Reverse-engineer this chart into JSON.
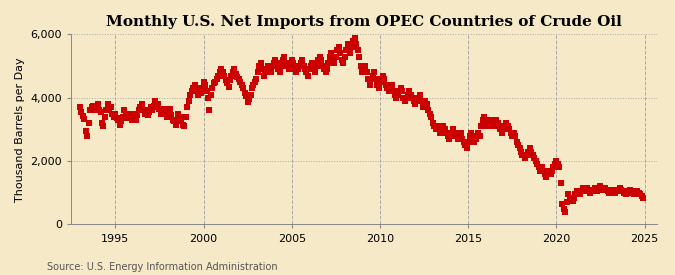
{
  "title": "Monthly U.S. Net Imports from OPEC Countries of Crude Oil",
  "ylabel": "Thousand Barrels per Day",
  "source": "Source: U.S. Energy Information Administration",
  "bg_color": "#f5e9c8",
  "plot_bg_color": "#f5e9c8",
  "marker_color": "#cc0000",
  "marker": "s",
  "marker_size": 18,
  "ylim": [
    0,
    6000
  ],
  "yticks": [
    0,
    2000,
    4000,
    6000
  ],
  "ytick_labels": [
    "0",
    "2,000",
    "4,000",
    "6,000"
  ],
  "xlim_start": 1992.5,
  "xlim_end": 2025.7,
  "xticks": [
    1995,
    2000,
    2005,
    2010,
    2015,
    2020,
    2025
  ],
  "grid_color": "#aaaaaa",
  "grid_style": "-.",
  "title_fontsize": 11,
  "ylabel_fontsize": 8,
  "tick_fontsize": 8,
  "source_fontsize": 7,
  "data": [
    [
      1993.0,
      3700
    ],
    [
      1993.08,
      3550
    ],
    [
      1993.17,
      3420
    ],
    [
      1993.25,
      3320
    ],
    [
      1993.33,
      2950
    ],
    [
      1993.42,
      2800
    ],
    [
      1993.5,
      3200
    ],
    [
      1993.58,
      3600
    ],
    [
      1993.67,
      3700
    ],
    [
      1993.75,
      3750
    ],
    [
      1993.83,
      3600
    ],
    [
      1993.92,
      3700
    ],
    [
      1994.0,
      3800
    ],
    [
      1994.08,
      3600
    ],
    [
      1994.17,
      3550
    ],
    [
      1994.25,
      3200
    ],
    [
      1994.33,
      3100
    ],
    [
      1994.42,
      3400
    ],
    [
      1994.5,
      3600
    ],
    [
      1994.58,
      3800
    ],
    [
      1994.67,
      3650
    ],
    [
      1994.75,
      3700
    ],
    [
      1994.83,
      3500
    ],
    [
      1994.92,
      3400
    ],
    [
      1995.0,
      3500
    ],
    [
      1995.08,
      3350
    ],
    [
      1995.17,
      3300
    ],
    [
      1995.25,
      3150
    ],
    [
      1995.33,
      3250
    ],
    [
      1995.42,
      3400
    ],
    [
      1995.5,
      3600
    ],
    [
      1995.58,
      3500
    ],
    [
      1995.67,
      3350
    ],
    [
      1995.75,
      3500
    ],
    [
      1995.83,
      3400
    ],
    [
      1995.92,
      3300
    ],
    [
      1996.0,
      3350
    ],
    [
      1996.08,
      3500
    ],
    [
      1996.17,
      3300
    ],
    [
      1996.25,
      3450
    ],
    [
      1996.33,
      3600
    ],
    [
      1996.42,
      3700
    ],
    [
      1996.5,
      3800
    ],
    [
      1996.58,
      3600
    ],
    [
      1996.67,
      3500
    ],
    [
      1996.75,
      3600
    ],
    [
      1996.83,
      3450
    ],
    [
      1996.92,
      3550
    ],
    [
      1997.0,
      3700
    ],
    [
      1997.08,
      3600
    ],
    [
      1997.17,
      3750
    ],
    [
      1997.25,
      3900
    ],
    [
      1997.33,
      3700
    ],
    [
      1997.42,
      3800
    ],
    [
      1997.5,
      3650
    ],
    [
      1997.58,
      3500
    ],
    [
      1997.67,
      3600
    ],
    [
      1997.75,
      3650
    ],
    [
      1997.83,
      3500
    ],
    [
      1997.92,
      3400
    ],
    [
      1998.0,
      3550
    ],
    [
      1998.08,
      3650
    ],
    [
      1998.17,
      3450
    ],
    [
      1998.25,
      3300
    ],
    [
      1998.33,
      3250
    ],
    [
      1998.42,
      3150
    ],
    [
      1998.5,
      3300
    ],
    [
      1998.58,
      3500
    ],
    [
      1998.67,
      3400
    ],
    [
      1998.75,
      3250
    ],
    [
      1998.83,
      3150
    ],
    [
      1998.92,
      3100
    ],
    [
      1999.0,
      3400
    ],
    [
      1999.08,
      3700
    ],
    [
      1999.17,
      3900
    ],
    [
      1999.25,
      4100
    ],
    [
      1999.33,
      4200
    ],
    [
      1999.42,
      4300
    ],
    [
      1999.5,
      4400
    ],
    [
      1999.58,
      4200
    ],
    [
      1999.67,
      4100
    ],
    [
      1999.75,
      4300
    ],
    [
      1999.83,
      4150
    ],
    [
      1999.92,
      4300
    ],
    [
      2000.0,
      4500
    ],
    [
      2000.08,
      4400
    ],
    [
      2000.17,
      4200
    ],
    [
      2000.25,
      4000
    ],
    [
      2000.33,
      3600
    ],
    [
      2000.42,
      4100
    ],
    [
      2000.5,
      4300
    ],
    [
      2000.58,
      4450
    ],
    [
      2000.67,
      4500
    ],
    [
      2000.75,
      4600
    ],
    [
      2000.83,
      4700
    ],
    [
      2000.92,
      4800
    ],
    [
      2001.0,
      4900
    ],
    [
      2001.08,
      4800
    ],
    [
      2001.17,
      4700
    ],
    [
      2001.25,
      4550
    ],
    [
      2001.33,
      4450
    ],
    [
      2001.42,
      4350
    ],
    [
      2001.5,
      4550
    ],
    [
      2001.58,
      4700
    ],
    [
      2001.67,
      4800
    ],
    [
      2001.75,
      4900
    ],
    [
      2001.83,
      4750
    ],
    [
      2001.92,
      4650
    ],
    [
      2002.0,
      4600
    ],
    [
      2002.08,
      4500
    ],
    [
      2002.17,
      4400
    ],
    [
      2002.25,
      4300
    ],
    [
      2002.33,
      4150
    ],
    [
      2002.42,
      4050
    ],
    [
      2002.5,
      3850
    ],
    [
      2002.58,
      3950
    ],
    [
      2002.67,
      4100
    ],
    [
      2002.75,
      4300
    ],
    [
      2002.83,
      4400
    ],
    [
      2002.92,
      4500
    ],
    [
      2003.0,
      4600
    ],
    [
      2003.08,
      4800
    ],
    [
      2003.17,
      5000
    ],
    [
      2003.25,
      5100
    ],
    [
      2003.33,
      4900
    ],
    [
      2003.42,
      4700
    ],
    [
      2003.5,
      4800
    ],
    [
      2003.58,
      4900
    ],
    [
      2003.67,
      5000
    ],
    [
      2003.75,
      4900
    ],
    [
      2003.83,
      4800
    ],
    [
      2003.92,
      5000
    ],
    [
      2004.0,
      5100
    ],
    [
      2004.08,
      5200
    ],
    [
      2004.17,
      5100
    ],
    [
      2004.25,
      4900
    ],
    [
      2004.33,
      4800
    ],
    [
      2004.42,
      5000
    ],
    [
      2004.5,
      5200
    ],
    [
      2004.58,
      5300
    ],
    [
      2004.67,
      5100
    ],
    [
      2004.75,
      5000
    ],
    [
      2004.83,
      4900
    ],
    [
      2004.92,
      5100
    ],
    [
      2005.0,
      5200
    ],
    [
      2005.08,
      5100
    ],
    [
      2005.17,
      4900
    ],
    [
      2005.25,
      4800
    ],
    [
      2005.33,
      4900
    ],
    [
      2005.42,
      5000
    ],
    [
      2005.5,
      5100
    ],
    [
      2005.58,
      5200
    ],
    [
      2005.67,
      5000
    ],
    [
      2005.75,
      4900
    ],
    [
      2005.83,
      4800
    ],
    [
      2005.92,
      4700
    ],
    [
      2006.0,
      4900
    ],
    [
      2006.08,
      5000
    ],
    [
      2006.17,
      5100
    ],
    [
      2006.25,
      4900
    ],
    [
      2006.33,
      4800
    ],
    [
      2006.42,
      5000
    ],
    [
      2006.5,
      5200
    ],
    [
      2006.58,
      5300
    ],
    [
      2006.67,
      5200
    ],
    [
      2006.75,
      5000
    ],
    [
      2006.83,
      4900
    ],
    [
      2006.92,
      4800
    ],
    [
      2007.0,
      4900
    ],
    [
      2007.08,
      5100
    ],
    [
      2007.17,
      5300
    ],
    [
      2007.25,
      5400
    ],
    [
      2007.33,
      5200
    ],
    [
      2007.42,
      5100
    ],
    [
      2007.5,
      5300
    ],
    [
      2007.58,
      5500
    ],
    [
      2007.67,
      5600
    ],
    [
      2007.75,
      5400
    ],
    [
      2007.83,
      5200
    ],
    [
      2007.92,
      5100
    ],
    [
      2008.0,
      5300
    ],
    [
      2008.08,
      5500
    ],
    [
      2008.17,
      5700
    ],
    [
      2008.25,
      5600
    ],
    [
      2008.33,
      5400
    ],
    [
      2008.42,
      5600
    ],
    [
      2008.5,
      5800
    ],
    [
      2008.58,
      5900
    ],
    [
      2008.67,
      5700
    ],
    [
      2008.75,
      5500
    ],
    [
      2008.83,
      5300
    ],
    [
      2008.92,
      5000
    ],
    [
      2009.0,
      4800
    ],
    [
      2009.08,
      4900
    ],
    [
      2009.17,
      5000
    ],
    [
      2009.25,
      4800
    ],
    [
      2009.33,
      4600
    ],
    [
      2009.42,
      4400
    ],
    [
      2009.5,
      4600
    ],
    [
      2009.58,
      4700
    ],
    [
      2009.67,
      4800
    ],
    [
      2009.75,
      4600
    ],
    [
      2009.83,
      4400
    ],
    [
      2009.92,
      4300
    ],
    [
      2010.0,
      4500
    ],
    [
      2010.08,
      4600
    ],
    [
      2010.17,
      4700
    ],
    [
      2010.25,
      4600
    ],
    [
      2010.33,
      4400
    ],
    [
      2010.42,
      4300
    ],
    [
      2010.5,
      4200
    ],
    [
      2010.58,
      4300
    ],
    [
      2010.67,
      4400
    ],
    [
      2010.75,
      4200
    ],
    [
      2010.83,
      4100
    ],
    [
      2010.92,
      4000
    ],
    [
      2011.0,
      4100
    ],
    [
      2011.08,
      4200
    ],
    [
      2011.17,
      4300
    ],
    [
      2011.25,
      4200
    ],
    [
      2011.33,
      4000
    ],
    [
      2011.42,
      3900
    ],
    [
      2011.5,
      4000
    ],
    [
      2011.58,
      4100
    ],
    [
      2011.67,
      4200
    ],
    [
      2011.75,
      4100
    ],
    [
      2011.83,
      4000
    ],
    [
      2011.92,
      3900
    ],
    [
      2012.0,
      3800
    ],
    [
      2012.08,
      3900
    ],
    [
      2012.17,
      4000
    ],
    [
      2012.25,
      4100
    ],
    [
      2012.33,
      3900
    ],
    [
      2012.42,
      3700
    ],
    [
      2012.5,
      3800
    ],
    [
      2012.58,
      3900
    ],
    [
      2012.67,
      3800
    ],
    [
      2012.75,
      3600
    ],
    [
      2012.83,
      3500
    ],
    [
      2012.92,
      3400
    ],
    [
      2013.0,
      3200
    ],
    [
      2013.08,
      3100
    ],
    [
      2013.17,
      3000
    ],
    [
      2013.25,
      3100
    ],
    [
      2013.33,
      3000
    ],
    [
      2013.42,
      2900
    ],
    [
      2013.5,
      3000
    ],
    [
      2013.58,
      3100
    ],
    [
      2013.67,
      3000
    ],
    [
      2013.75,
      2900
    ],
    [
      2013.83,
      2800
    ],
    [
      2013.92,
      2700
    ],
    [
      2014.0,
      2800
    ],
    [
      2014.08,
      2900
    ],
    [
      2014.17,
      3000
    ],
    [
      2014.25,
      2900
    ],
    [
      2014.33,
      2800
    ],
    [
      2014.42,
      2700
    ],
    [
      2014.5,
      2800
    ],
    [
      2014.58,
      2900
    ],
    [
      2014.67,
      2700
    ],
    [
      2014.75,
      2600
    ],
    [
      2014.83,
      2500
    ],
    [
      2014.92,
      2400
    ],
    [
      2015.0,
      2600
    ],
    [
      2015.08,
      2800
    ],
    [
      2015.17,
      2900
    ],
    [
      2015.25,
      2700
    ],
    [
      2015.33,
      2600
    ],
    [
      2015.42,
      2700
    ],
    [
      2015.5,
      2800
    ],
    [
      2015.58,
      2900
    ],
    [
      2015.67,
      2800
    ],
    [
      2015.75,
      3100
    ],
    [
      2015.83,
      3300
    ],
    [
      2015.92,
      3400
    ],
    [
      2016.0,
      3200
    ],
    [
      2016.08,
      3100
    ],
    [
      2016.17,
      3200
    ],
    [
      2016.25,
      3300
    ],
    [
      2016.33,
      3200
    ],
    [
      2016.42,
      3100
    ],
    [
      2016.5,
      3200
    ],
    [
      2016.58,
      3300
    ],
    [
      2016.67,
      3200
    ],
    [
      2016.75,
      3100
    ],
    [
      2016.83,
      3000
    ],
    [
      2016.92,
      2900
    ],
    [
      2017.0,
      3000
    ],
    [
      2017.08,
      3100
    ],
    [
      2017.17,
      3200
    ],
    [
      2017.25,
      3100
    ],
    [
      2017.33,
      3000
    ],
    [
      2017.42,
      2900
    ],
    [
      2017.5,
      2800
    ],
    [
      2017.58,
      2900
    ],
    [
      2017.67,
      2800
    ],
    [
      2017.75,
      2600
    ],
    [
      2017.83,
      2500
    ],
    [
      2017.92,
      2400
    ],
    [
      2018.0,
      2300
    ],
    [
      2018.08,
      2200
    ],
    [
      2018.17,
      2200
    ],
    [
      2018.25,
      2100
    ],
    [
      2018.33,
      2200
    ],
    [
      2018.42,
      2300
    ],
    [
      2018.5,
      2400
    ],
    [
      2018.58,
      2300
    ],
    [
      2018.67,
      2200
    ],
    [
      2018.75,
      2100
    ],
    [
      2018.83,
      2000
    ],
    [
      2018.92,
      1900
    ],
    [
      2019.0,
      1800
    ],
    [
      2019.08,
      1700
    ],
    [
      2019.17,
      1800
    ],
    [
      2019.25,
      1700
    ],
    [
      2019.33,
      1600
    ],
    [
      2019.42,
      1500
    ],
    [
      2019.5,
      1600
    ],
    [
      2019.58,
      1700
    ],
    [
      2019.67,
      1600
    ],
    [
      2019.75,
      1700
    ],
    [
      2019.83,
      1800
    ],
    [
      2019.92,
      1900
    ],
    [
      2020.0,
      2000
    ],
    [
      2020.08,
      1900
    ],
    [
      2020.17,
      1800
    ],
    [
      2020.25,
      1300
    ],
    [
      2020.33,
      650
    ],
    [
      2020.42,
      500
    ],
    [
      2020.5,
      380
    ],
    [
      2020.58,
      700
    ],
    [
      2020.67,
      950
    ],
    [
      2020.75,
      850
    ],
    [
      2020.83,
      800
    ],
    [
      2020.92,
      750
    ],
    [
      2021.0,
      850
    ],
    [
      2021.08,
      950
    ],
    [
      2021.17,
      1050
    ],
    [
      2021.25,
      1000
    ],
    [
      2021.33,
      950
    ],
    [
      2021.42,
      1050
    ],
    [
      2021.5,
      1150
    ],
    [
      2021.58,
      1100
    ],
    [
      2021.67,
      1050
    ],
    [
      2021.75,
      1150
    ],
    [
      2021.83,
      1050
    ],
    [
      2021.92,
      1000
    ],
    [
      2022.0,
      1050
    ],
    [
      2022.08,
      1100
    ],
    [
      2022.17,
      1150
    ],
    [
      2022.25,
      1100
    ],
    [
      2022.33,
      1050
    ],
    [
      2022.42,
      1150
    ],
    [
      2022.5,
      1200
    ],
    [
      2022.58,
      1150
    ],
    [
      2022.67,
      1100
    ],
    [
      2022.75,
      1150
    ],
    [
      2022.83,
      1100
    ],
    [
      2022.92,
      1050
    ],
    [
      2023.0,
      1000
    ],
    [
      2023.08,
      1050
    ],
    [
      2023.17,
      1100
    ],
    [
      2023.25,
      1050
    ],
    [
      2023.33,
      1000
    ],
    [
      2023.42,
      1050
    ],
    [
      2023.5,
      1100
    ],
    [
      2023.58,
      1150
    ],
    [
      2023.67,
      1100
    ],
    [
      2023.75,
      1050
    ],
    [
      2023.83,
      1000
    ],
    [
      2023.92,
      950
    ],
    [
      2024.0,
      1000
    ],
    [
      2024.08,
      1050
    ],
    [
      2024.17,
      1100
    ],
    [
      2024.25,
      1050
    ],
    [
      2024.33,
      1000
    ],
    [
      2024.42,
      950
    ],
    [
      2024.5,
      1000
    ],
    [
      2024.58,
      1050
    ],
    [
      2024.67,
      1000
    ],
    [
      2024.75,
      950
    ],
    [
      2024.83,
      900
    ],
    [
      2024.92,
      850
    ]
  ]
}
